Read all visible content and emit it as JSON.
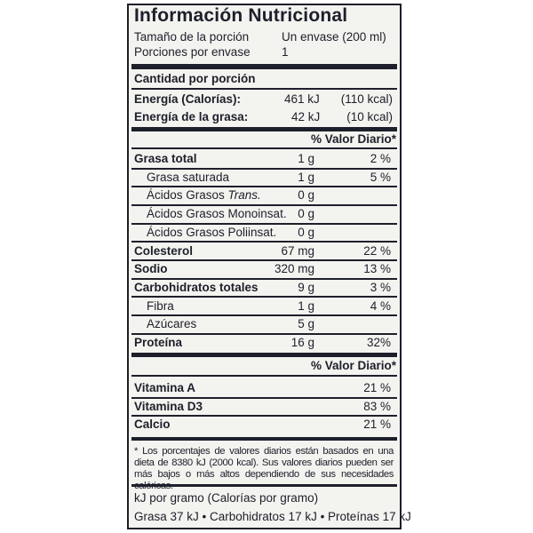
{
  "title": "Información Nutricional",
  "serving": {
    "size_label": "Tamaño de la porción",
    "size_value": "Un envase (200 ml)",
    "per_container_label": "Porciones por envase",
    "per_container_value": "1"
  },
  "amount_header": "Cantidad por porción",
  "energy": {
    "label": "Energía (Calorías):",
    "kj": "461 kJ",
    "kcal": "(110 kcal)"
  },
  "fat_energy": {
    "label": "Energía de la grasa:",
    "kj": "42 kJ",
    "kcal": "(10 kcal)"
  },
  "dv_header": "% Valor Diario*",
  "nutrients": [
    {
      "name": "Grasa total",
      "amount": "1 g",
      "dv": "2 %",
      "bold": true,
      "indent": false
    },
    {
      "name": "Grasa saturada",
      "amount": "1 g",
      "dv": "5 %",
      "bold": false,
      "indent": true
    },
    {
      "name": "Ácidos Grasos Trans.",
      "amount": "0 g",
      "dv": "",
      "bold": false,
      "indent": true
    },
    {
      "name": "Ácidos Grasos Monoinsat.",
      "amount": "0 g",
      "dv": "",
      "bold": false,
      "indent": true
    },
    {
      "name": "Ácidos Grasos Poliinsat.",
      "amount": "0 g",
      "dv": "",
      "bold": false,
      "indent": true
    },
    {
      "name": "Colesterol",
      "amount": "67 mg",
      "dv": "22 %",
      "bold": true,
      "indent": false
    },
    {
      "name": "Sodio",
      "amount": "320 mg",
      "dv": "13 %",
      "bold": true,
      "indent": false
    },
    {
      "name": "Carbohidratos totales",
      "amount": "9 g",
      "dv": "3 %",
      "bold": true,
      "indent": false
    },
    {
      "name": "Fibra",
      "amount": "1 g",
      "dv": "4 %",
      "bold": false,
      "indent": true
    },
    {
      "name": "Azúcares",
      "amount": "5 g",
      "dv": "",
      "bold": false,
      "indent": true
    },
    {
      "name": "Proteína",
      "amount": "16 g",
      "dv": "32%",
      "bold": true,
      "indent": false
    }
  ],
  "vitamins_header": "% Valor Diario*",
  "vitamins": [
    {
      "name": "Vitamina A",
      "dv": "21 %"
    },
    {
      "name": "Vitamina D3",
      "dv": "83 %"
    },
    {
      "name": "Calcio",
      "dv": "21 %"
    }
  ],
  "footnote": "* Los porcentajes de valores diarios están basados en una dieta de 8380 kJ (2000 kcal). Sus valores diarios pueden ser más bajos o más altos dependiendo de sus necesidades calóricas.",
  "conversion": {
    "header": "kJ por gramo (Calorías por gramo)",
    "values": "Grasa 37 kJ • Carbohidratos 17 kJ • Proteínas 17 kJ"
  }
}
